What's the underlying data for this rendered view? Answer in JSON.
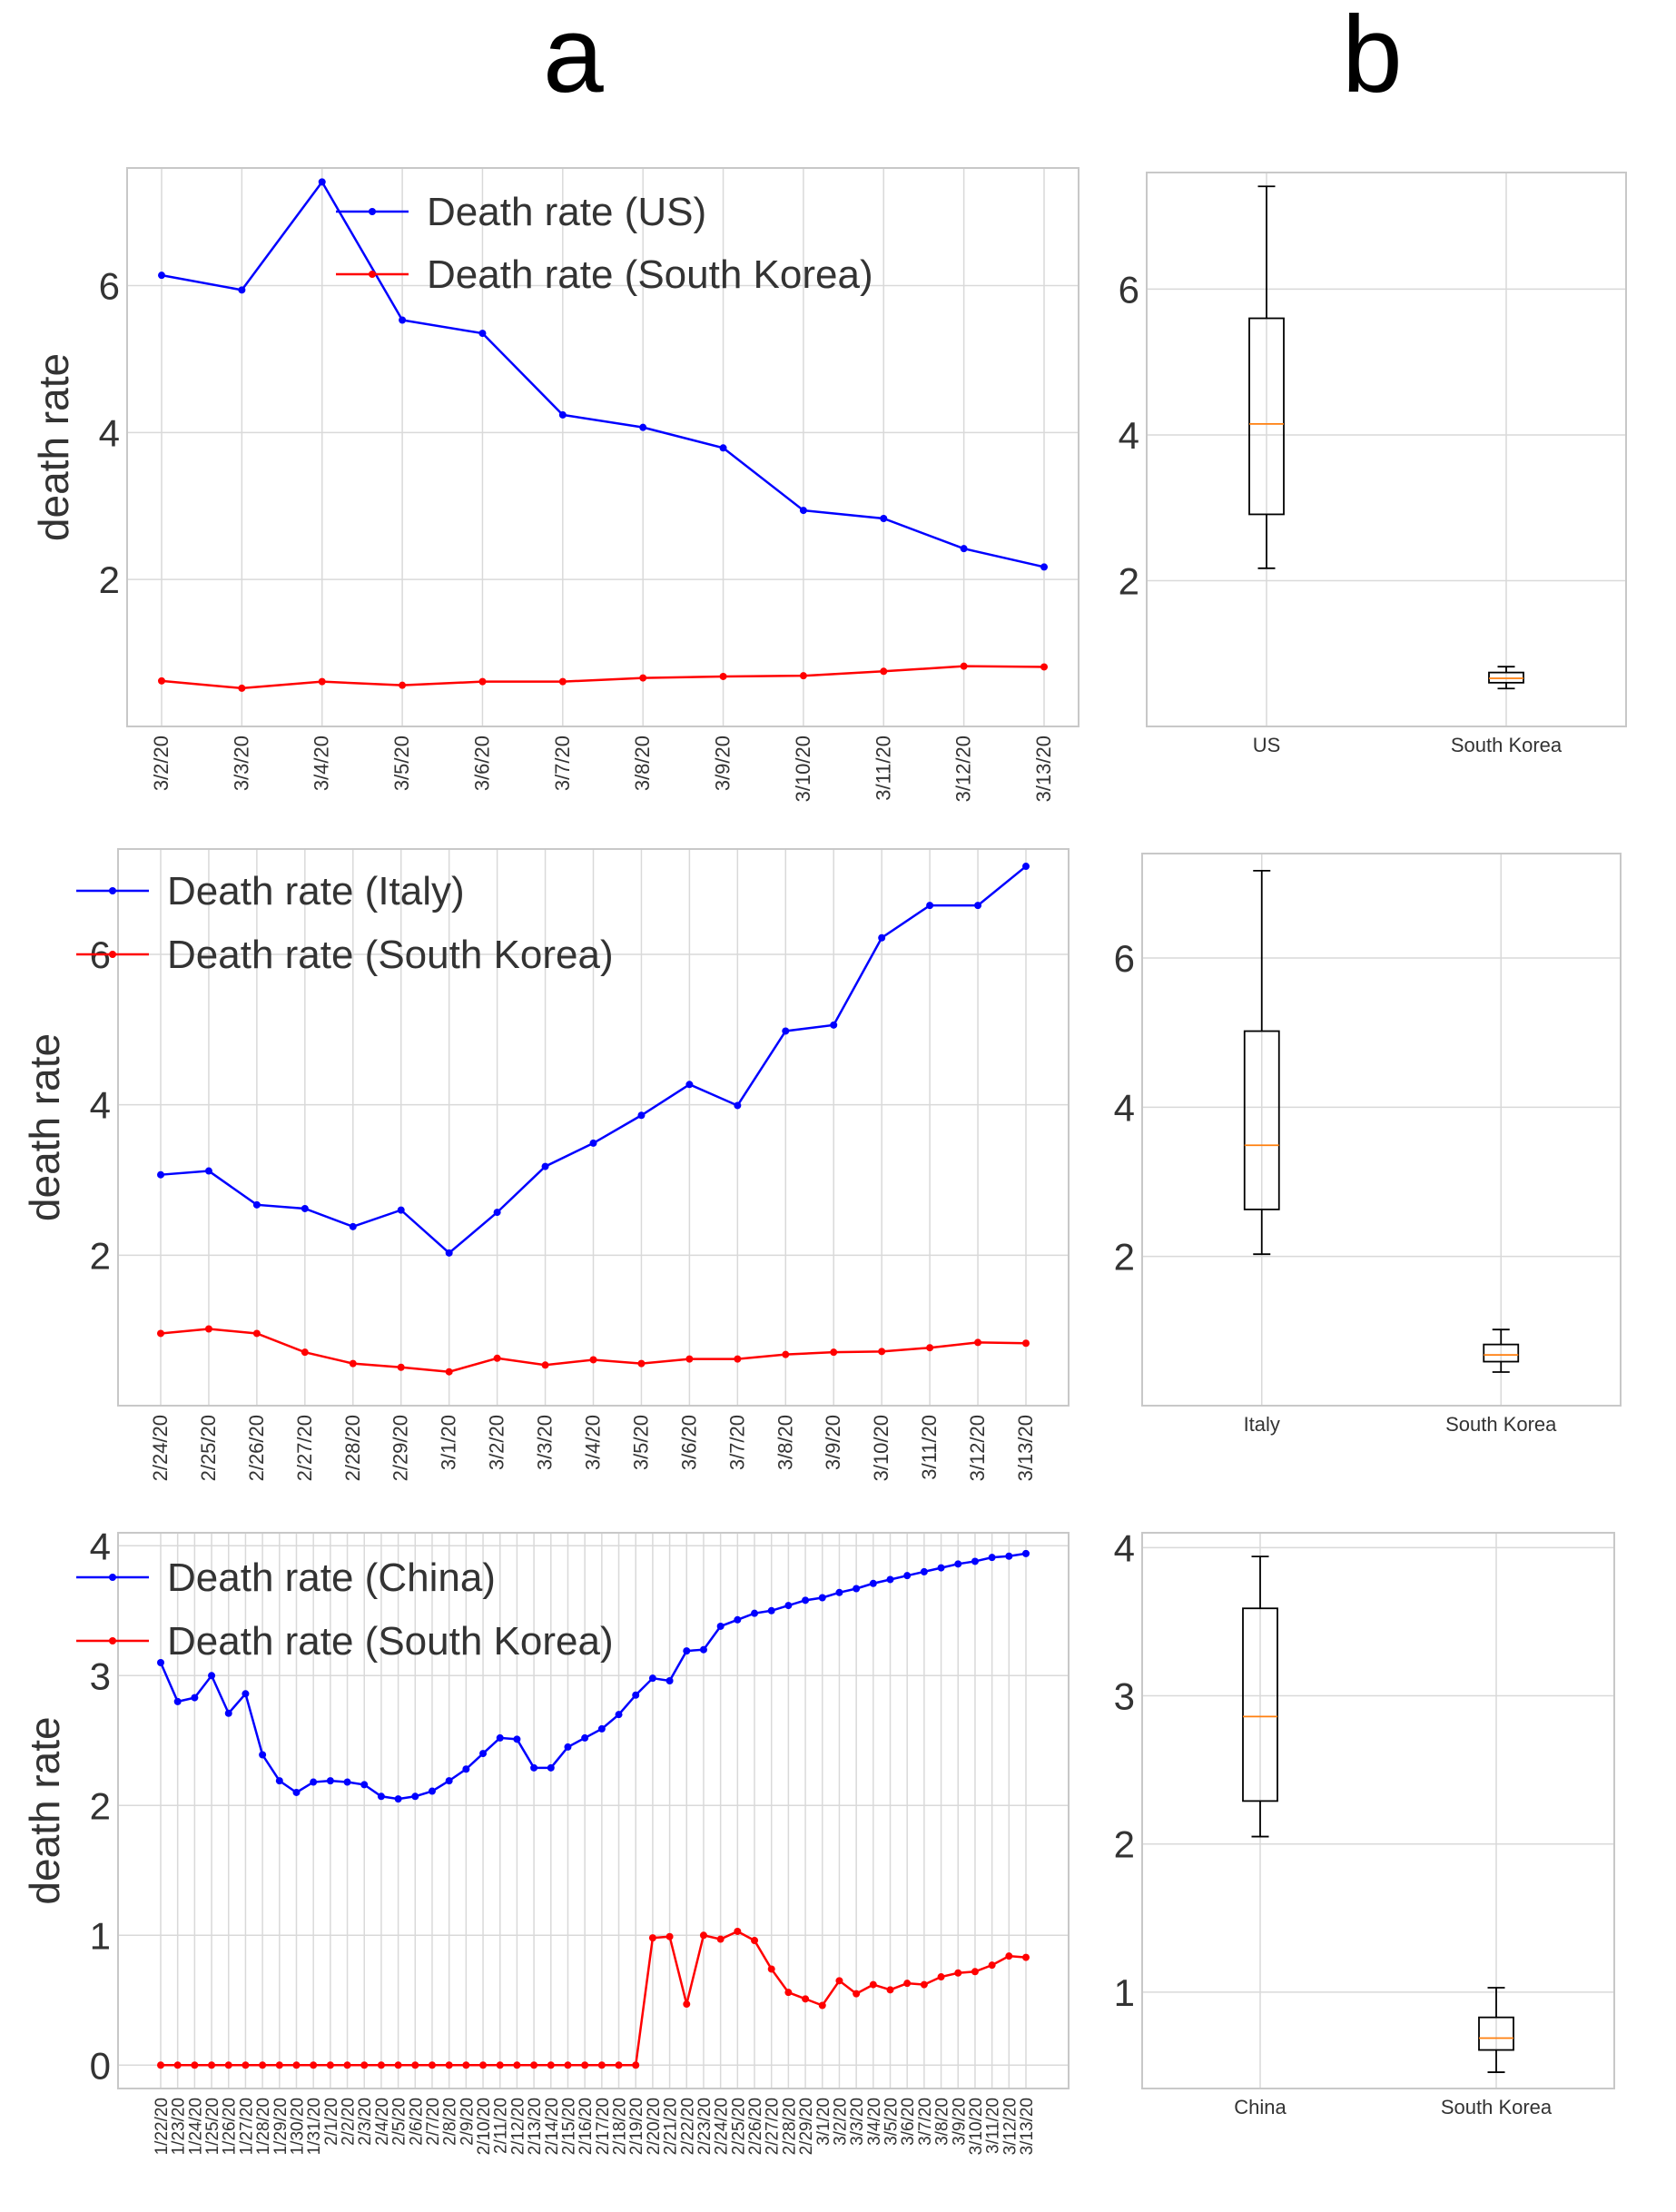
{
  "panel_labels": {
    "a": "a",
    "b": "b"
  },
  "chart_data": [
    {
      "id": "a1",
      "type": "line",
      "ylabel": "death rate",
      "ylim": [
        0.0,
        7.6
      ],
      "yticks": [
        2,
        4,
        6
      ],
      "grid": true,
      "legend_position": "top-right",
      "categories": [
        "3/2/20",
        "3/3/20",
        "3/4/20",
        "3/5/20",
        "3/6/20",
        "3/7/20",
        "3/8/20",
        "3/9/20",
        "3/10/20",
        "3/11/20",
        "3/12/20",
        "3/13/20"
      ],
      "series": [
        {
          "name": "Death rate (US)",
          "color": "#0000ff",
          "values": [
            6.14,
            5.94,
            7.41,
            5.53,
            5.35,
            4.24,
            4.07,
            3.79,
            2.94,
            2.83,
            2.42,
            2.17
          ]
        },
        {
          "name": "Death rate (South Korea)",
          "color": "#ff0000",
          "values": [
            0.62,
            0.52,
            0.61,
            0.56,
            0.61,
            0.61,
            0.66,
            0.68,
            0.69,
            0.75,
            0.82,
            0.81
          ]
        }
      ]
    },
    {
      "id": "b1",
      "type": "box",
      "ylim": [
        0.0,
        7.6
      ],
      "yticks": [
        2,
        4,
        6
      ],
      "grid": true,
      "categories": [
        "US",
        "South Korea"
      ],
      "boxes": [
        {
          "min": 2.17,
          "q1": 2.91,
          "median": 4.15,
          "q3": 5.6,
          "max": 7.41
        },
        {
          "min": 0.52,
          "q1": 0.6,
          "median": 0.66,
          "q3": 0.74,
          "max": 0.82
        }
      ]
    },
    {
      "id": "a2",
      "type": "line",
      "ylabel": "death rate",
      "ylim": [
        0.0,
        7.4
      ],
      "yticks": [
        2,
        4,
        6
      ],
      "grid": true,
      "legend_position": "top-left",
      "categories": [
        "2/24/20",
        "2/25/20",
        "2/26/20",
        "2/27/20",
        "2/28/20",
        "2/29/20",
        "3/1/20",
        "3/2/20",
        "3/3/20",
        "3/4/20",
        "3/5/20",
        "3/6/20",
        "3/7/20",
        "3/8/20",
        "3/9/20",
        "3/10/20",
        "3/11/20",
        "3/12/20",
        "3/13/20"
      ],
      "series": [
        {
          "name": "Death rate (Italy)",
          "color": "#0000ff",
          "values": [
            3.07,
            3.12,
            2.67,
            2.62,
            2.38,
            2.6,
            2.03,
            2.57,
            3.18,
            3.49,
            3.86,
            4.27,
            3.99,
            4.98,
            5.06,
            6.22,
            6.65,
            6.65,
            7.17
          ]
        },
        {
          "name": "Death rate (South Korea)",
          "color": "#ff0000",
          "values": [
            0.96,
            1.02,
            0.96,
            0.71,
            0.56,
            0.51,
            0.45,
            0.63,
            0.54,
            0.61,
            0.56,
            0.62,
            0.62,
            0.68,
            0.71,
            0.72,
            0.77,
            0.84,
            0.83
          ]
        }
      ]
    },
    {
      "id": "b2",
      "type": "box",
      "ylim": [
        0.0,
        7.4
      ],
      "yticks": [
        2,
        4,
        6
      ],
      "grid": true,
      "categories": [
        "Italy",
        "South Korea"
      ],
      "boxes": [
        {
          "min": 2.03,
          "q1": 2.63,
          "median": 3.49,
          "q3": 5.02,
          "max": 7.17
        },
        {
          "min": 0.45,
          "q1": 0.59,
          "median": 0.68,
          "q3": 0.82,
          "max": 1.02
        }
      ]
    },
    {
      "id": "a3",
      "type": "line",
      "ylabel": "death rate",
      "ylim": [
        -0.18,
        4.1
      ],
      "yticks": [
        0,
        1,
        2,
        3,
        4
      ],
      "grid": true,
      "legend_position": "top-left",
      "categories": [
        "1/22/20",
        "1/23/20",
        "1/24/20",
        "1/25/20",
        "1/26/20",
        "1/27/20",
        "1/28/20",
        "1/29/20",
        "1/30/20",
        "1/31/20",
        "2/1/20",
        "2/2/20",
        "2/3/20",
        "2/4/20",
        "2/5/20",
        "2/6/20",
        "2/7/20",
        "2/8/20",
        "2/9/20",
        "2/10/20",
        "2/11/20",
        "2/12/20",
        "2/13/20",
        "2/14/20",
        "2/15/20",
        "2/16/20",
        "2/17/20",
        "2/18/20",
        "2/19/20",
        "2/20/20",
        "2/21/20",
        "2/22/20",
        "2/23/20",
        "2/24/20",
        "2/25/20",
        "2/26/20",
        "2/27/20",
        "2/28/20",
        "2/29/20",
        "3/1/20",
        "3/2/20",
        "3/3/20",
        "3/4/20",
        "3/5/20",
        "3/6/20",
        "3/7/20",
        "3/8/20",
        "3/9/20",
        "3/10/20",
        "3/11/20",
        "3/12/20",
        "3/13/20"
      ],
      "series": [
        {
          "name": "Death rate (China)",
          "color": "#0000ff",
          "values": [
            3.1,
            2.8,
            2.83,
            3.0,
            2.71,
            2.86,
            2.39,
            2.19,
            2.1,
            2.18,
            2.19,
            2.18,
            2.16,
            2.07,
            2.05,
            2.07,
            2.11,
            2.19,
            2.28,
            2.4,
            2.52,
            2.51,
            2.29,
            2.29,
            2.45,
            2.52,
            2.59,
            2.7,
            2.85,
            2.98,
            2.96,
            3.19,
            3.2,
            3.38,
            3.43,
            3.48,
            3.5,
            3.54,
            3.58,
            3.6,
            3.64,
            3.67,
            3.71,
            3.74,
            3.77,
            3.8,
            3.83,
            3.86,
            3.88,
            3.91,
            3.92,
            3.94
          ]
        },
        {
          "name": "Death rate (South Korea)",
          "color": "#ff0000",
          "values": [
            0,
            0,
            0,
            0,
            0,
            0,
            0,
            0,
            0,
            0,
            0,
            0,
            0,
            0,
            0,
            0,
            0,
            0,
            0,
            0,
            0,
            0,
            0,
            0,
            0,
            0,
            0,
            0,
            0,
            0.98,
            0.99,
            0.47,
            1.0,
            0.97,
            1.03,
            0.96,
            0.74,
            0.56,
            0.51,
            0.46,
            0.65,
            0.55,
            0.62,
            0.58,
            0.63,
            0.62,
            0.68,
            0.71,
            0.72,
            0.77,
            0.84,
            0.83
          ]
        }
      ]
    },
    {
      "id": "b3",
      "type": "box",
      "ylim": [
        0.35,
        4.1
      ],
      "yticks": [
        1,
        2,
        3,
        4
      ],
      "grid": true,
      "categories": [
        "China",
        "South Korea"
      ],
      "boxes": [
        {
          "min": 2.05,
          "q1": 2.29,
          "median": 2.86,
          "q3": 3.59,
          "max": 3.94
        },
        {
          "min": 0.46,
          "q1": 0.61,
          "median": 0.69,
          "q3": 0.83,
          "max": 1.03
        }
      ]
    }
  ]
}
